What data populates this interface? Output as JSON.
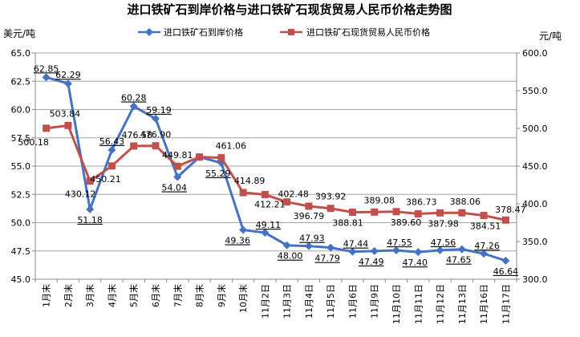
{
  "chart_data": {
    "type": "line",
    "title": "进口铁矿石到岸价格与进口铁矿石现货贸易人民币价格走势图",
    "ylabel_left": "美元/吨",
    "ylabel_right": "元/吨",
    "ylim_left": [
      45,
      65
    ],
    "ylim_right": [
      300,
      600
    ],
    "yticks_left": [
      "65.0",
      "62.5",
      "60.0",
      "57.5",
      "55.0",
      "52.5",
      "50.0",
      "47.5",
      "45.0"
    ],
    "yticks_right": [
      "600.0",
      "550.0",
      "500.0",
      "450.0",
      "400.0",
      "350.0",
      "300.0"
    ],
    "categories": [
      "1月末",
      "2月末",
      "3月末",
      "4月末",
      "5月末",
      "6月末",
      "7月末",
      "8月末",
      "9月末",
      "10月末",
      "11月2日",
      "11月3日",
      "11月4日",
      "11月5日",
      "11月6日",
      "11月9日",
      "11月10日",
      "11月11日",
      "11月12日",
      "11月13日",
      "11月16日",
      "11月17日"
    ],
    "grid": true,
    "legend_position": "top",
    "series": [
      {
        "name": "进口铁矿石到岸价格",
        "axis": "left",
        "color": "#4472C4",
        "marker": "diamond",
        "values": [
          62.85,
          62.29,
          51.18,
          56.43,
          60.28,
          59.19,
          54.04,
          55.8,
          55.29,
          49.36,
          49.11,
          48.0,
          47.93,
          47.79,
          47.44,
          47.49,
          47.55,
          47.4,
          47.56,
          47.65,
          47.26,
          46.64
        ],
        "labels": [
          "62.85",
          "62.29",
          "51.18",
          "56.43",
          "60.28",
          "59.19",
          "54.04",
          "",
          "55.29",
          "49.36",
          "49.11",
          "48.00",
          "47.93",
          "47.79",
          "47.44",
          "47.49",
          "47.55",
          "47.40",
          "47.56",
          "47.65",
          "47.26",
          "46.64"
        ]
      },
      {
        "name": "进口铁矿石现货贸易人民币价格",
        "axis": "right",
        "color": "#C0504D",
        "marker": "square",
        "values": [
          500.18,
          503.84,
          430.12,
          450.21,
          476.58,
          476.9,
          449.81,
          462,
          461.06,
          414.89,
          412.21,
          402.48,
          396.79,
          393.92,
          388.81,
          389.08,
          389.6,
          386.73,
          387.98,
          388.06,
          384.51,
          378.47
        ],
        "labels": [
          "500.18",
          "503.84",
          "430.12",
          "450.21",
          "476.58",
          "476.90",
          "449.81",
          "",
          "461.06",
          "414.89",
          "412.21",
          "402.48",
          "396.79",
          "393.92",
          "388.81",
          "389.08",
          "389.60",
          "386.73",
          "387.98",
          "388.06",
          "384.51",
          "378.47"
        ]
      }
    ]
  }
}
